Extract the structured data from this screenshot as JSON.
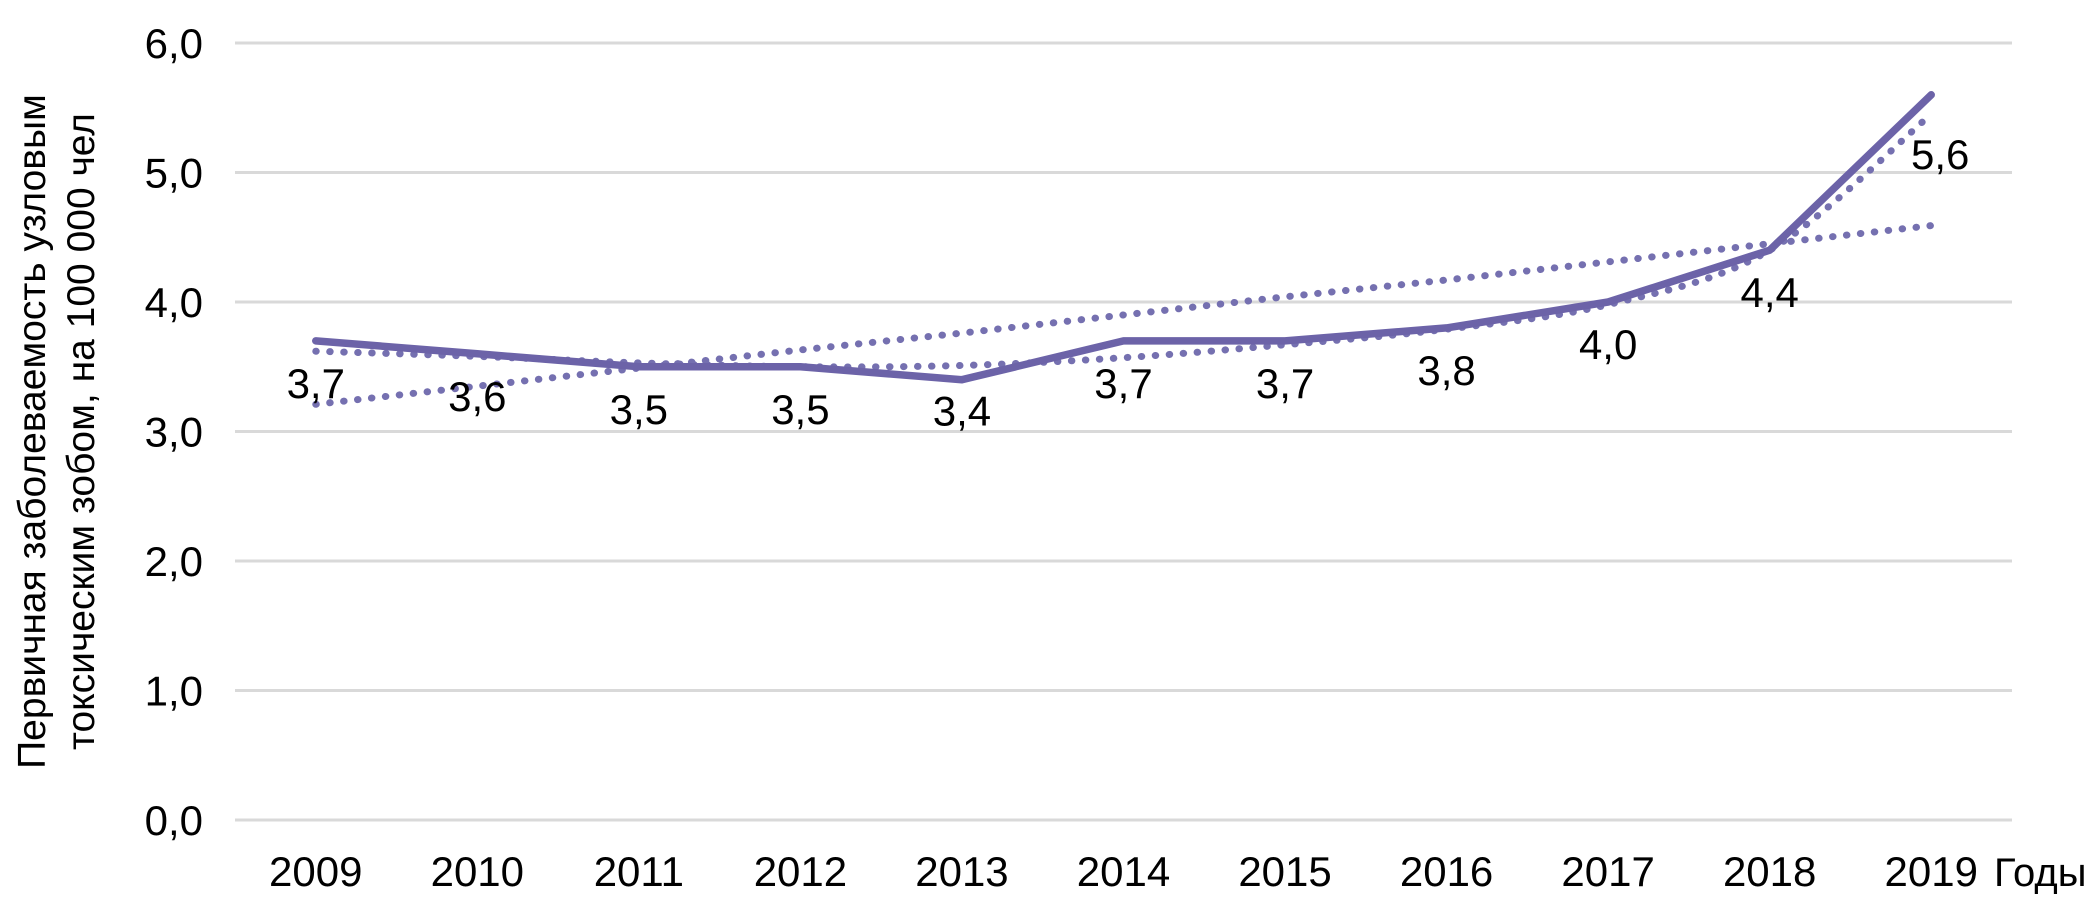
{
  "colors": {
    "series": "#6C63A8",
    "trend_dots": "#7570B0",
    "grid": "#D9D9D9",
    "text": "#000000",
    "background": "#FFFFFF"
  },
  "chart_data": {
    "type": "line",
    "title": "",
    "x_axis_label": "Годы",
    "y_axis_label_lines": [
      "Первичная заболеваемость узловым",
      "токсическим зобом, на 100 000 чел"
    ],
    "categories": [
      "2009",
      "2010",
      "2011",
      "2012",
      "2013",
      "2014",
      "2015",
      "2016",
      "2017",
      "2018",
      "2019"
    ],
    "y_ticks": [
      "0,0",
      "1,0",
      "2,0",
      "3,0",
      "4,0",
      "5,0",
      "6,0"
    ],
    "ylim": [
      0,
      6
    ],
    "grid": "horizontal",
    "legend": "none",
    "series": [
      {
        "name": "primary-incidence",
        "kind": "data",
        "style": "solid",
        "values": [
          3.7,
          3.6,
          3.5,
          3.5,
          3.4,
          3.7,
          3.7,
          3.8,
          4.0,
          4.4,
          5.6
        ],
        "point_labels": [
          "3,7",
          "3,6",
          "3,5",
          "3,5",
          "3,4",
          "3,7",
          "3,7",
          "3,8",
          "4,0",
          "4,4",
          "5,6"
        ]
      },
      {
        "name": "linear-trendline",
        "kind": "trend",
        "style": "dotted",
        "smooth": false,
        "values": [
          3.21,
          3.35,
          3.49,
          3.63,
          3.76,
          3.9,
          4.04,
          4.17,
          4.31,
          4.45,
          4.59
        ]
      },
      {
        "name": "polynomial-trendline",
        "kind": "trend",
        "style": "dotted",
        "smooth": true,
        "values": [
          3.62,
          3.58,
          3.53,
          3.5,
          3.51,
          3.57,
          3.67,
          3.79,
          3.98,
          4.4,
          5.45
        ]
      }
    ]
  }
}
